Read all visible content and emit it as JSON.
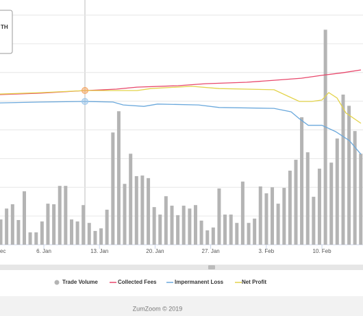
{
  "chart_data": {
    "type": "bar",
    "tooltip": "TH",
    "xlim": [
      0.48,
      46.17
    ],
    "xticks": [
      {
        "value": -1,
        "label": "ec"
      },
      {
        "value": 6,
        "label": "6. Jan"
      },
      {
        "value": 13,
        "label": "13. Jan"
      },
      {
        "value": 20,
        "label": "20. Jan"
      },
      {
        "value": 27,
        "label": "27. Jan"
      },
      {
        "value": 34,
        "label": "3. Feb"
      },
      {
        "value": 41,
        "label": "10. Feb"
      }
    ],
    "ylim": [
      0,
      8
    ],
    "yticks": [
      0,
      1,
      2,
      3,
      4,
      5,
      6,
      7,
      8
    ],
    "grid": true,
    "series": [
      {
        "name": "Trade Volume",
        "type": "bar",
        "color": "#b4b4b4",
        "x": [
          0.57,
          1.31,
          2.06,
          2.8,
          3.54,
          4.28,
          5.03,
          5.77,
          6.51,
          7.26,
          8.0,
          8.74,
          9.49,
          10.23,
          10.97,
          11.71,
          12.46,
          13.2,
          13.94,
          14.69,
          15.43,
          16.17,
          16.92,
          17.66,
          18.4,
          19.15,
          19.89,
          20.63,
          21.37,
          22.12,
          22.86,
          23.6,
          24.35,
          25.09,
          25.83,
          26.58,
          27.32,
          28.06,
          28.8,
          29.55,
          30.29,
          31.03,
          31.78,
          32.52,
          33.26,
          34.01,
          34.75,
          35.49,
          36.24,
          36.98,
          37.72,
          38.46,
          39.21,
          39.95,
          40.69,
          41.44,
          42.18,
          42.92,
          43.67,
          44.41,
          45.15,
          45.89
        ],
        "values": [
          0.88,
          1.26,
          1.41,
          0.86,
          1.86,
          0.43,
          0.43,
          0.81,
          1.43,
          1.41,
          2.05,
          2.05,
          0.88,
          0.81,
          1.38,
          0.76,
          0.48,
          0.57,
          1.22,
          3.91,
          4.65,
          2.12,
          3.17,
          2.39,
          2.41,
          2.32,
          1.31,
          1.05,
          1.69,
          1.36,
          1.03,
          1.36,
          1.26,
          1.38,
          0.84,
          0.5,
          0.6,
          1.96,
          1.05,
          1.05,
          0.76,
          2.2,
          0.76,
          0.91,
          2.03,
          1.79,
          2.0,
          1.43,
          1.98,
          2.58,
          2.96,
          4.44,
          3.22,
          1.67,
          2.65,
          7.49,
          2.86,
          3.7,
          5.23,
          4.84,
          3.96,
          3.17
        ]
      },
      {
        "name": "Collected Fees",
        "type": "line",
        "color": "#e8476b",
        "x": [
          0.48,
          5.66,
          11.17,
          15.14,
          17.72,
          22.9,
          26.34,
          31.52,
          34.97,
          38.41,
          41.0,
          43.59,
          45.91
        ],
        "values": [
          5.23,
          5.28,
          5.37,
          5.42,
          5.49,
          5.54,
          5.61,
          5.66,
          5.73,
          5.8,
          5.9,
          5.99,
          6.09
        ]
      },
      {
        "name": "Impermanent Loss",
        "type": "line",
        "color": "#6aa8dc",
        "x": [
          0.48,
          5.66,
          11.17,
          14.71,
          16.0,
          18.59,
          20.31,
          25.48,
          28.07,
          34.97,
          37.12,
          38.16,
          39.28,
          41.0,
          42.72,
          44.45,
          45.91
        ],
        "values": [
          4.94,
          4.97,
          4.99,
          4.97,
          4.87,
          4.82,
          4.9,
          4.87,
          4.78,
          4.75,
          4.63,
          4.39,
          4.16,
          4.16,
          3.94,
          3.63,
          3.15
        ]
      },
      {
        "name": "Net Profit",
        "type": "line",
        "color": "#e3d34a",
        "x": [
          0.48,
          5.66,
          11.17,
          17.72,
          19.45,
          24.62,
          28.07,
          34.97,
          36.69,
          38.16,
          39.71,
          41.0,
          41.86,
          42.9,
          44.02,
          45.91
        ],
        "values": [
          5.25,
          5.3,
          5.37,
          5.37,
          5.44,
          5.52,
          5.44,
          5.4,
          5.18,
          4.99,
          4.99,
          5.04,
          5.3,
          5.11,
          4.59,
          4.23
        ]
      }
    ]
  },
  "footer": "ZumZoom © 2019"
}
